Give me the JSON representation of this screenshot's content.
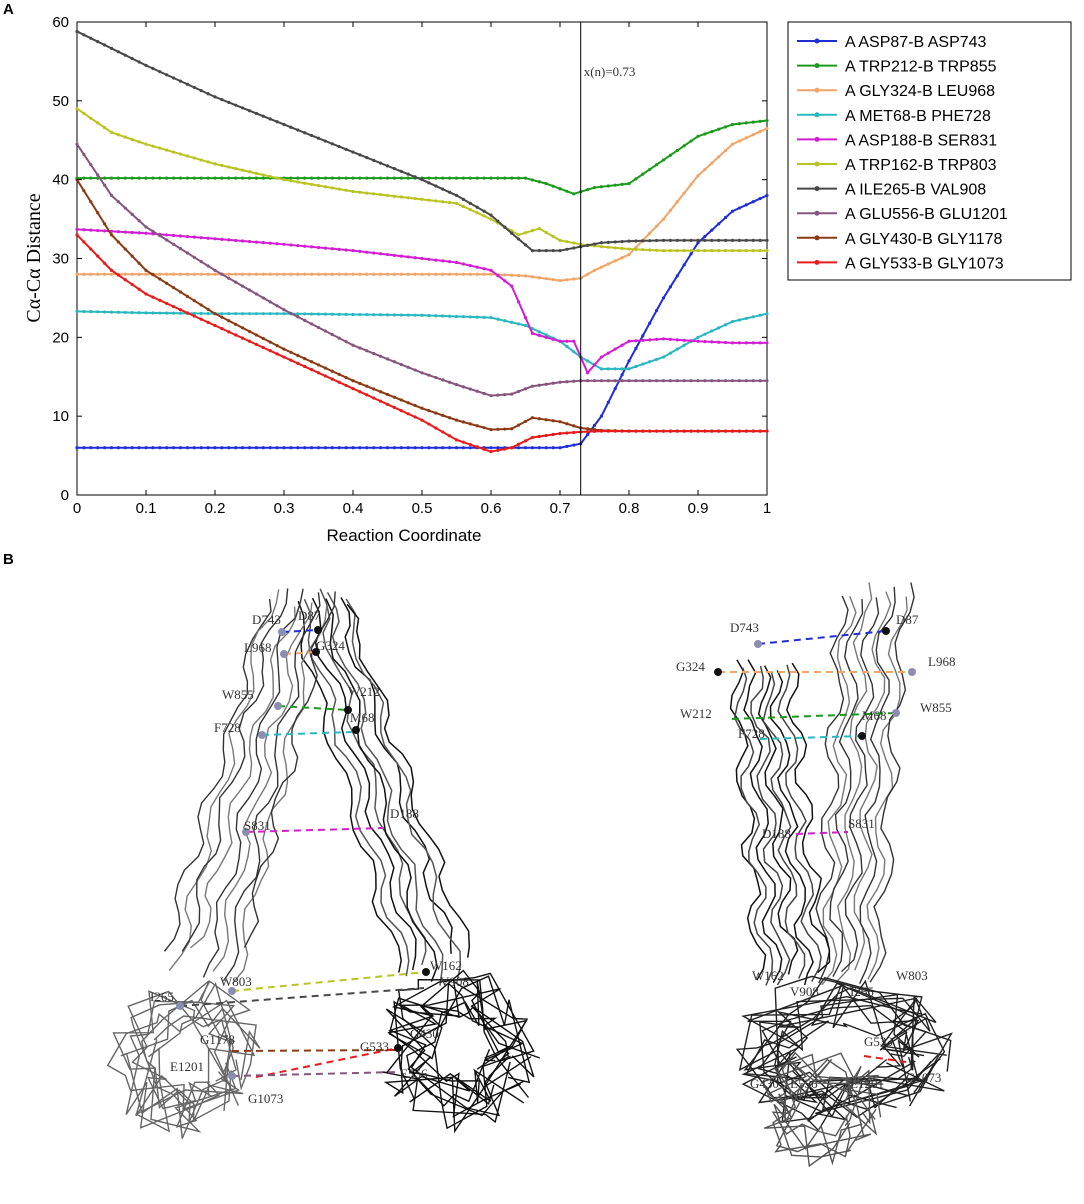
{
  "panels": {
    "a_label": "A",
    "b_label": "B"
  },
  "chart_data": {
    "type": "line",
    "title": "",
    "xlabel": "Reaction Coordinate",
    "ylabel": "Cα-Cα Distance",
    "xlim": [
      0,
      1
    ],
    "ylim": [
      0,
      60
    ],
    "x_ticks": [
      0,
      0.1,
      0.2,
      0.3,
      0.4,
      0.5,
      0.6,
      0.7,
      0.8,
      0.9,
      1
    ],
    "y_ticks": [
      0,
      10,
      20,
      30,
      40,
      50,
      60
    ],
    "grid": false,
    "legend_position": "outside-right",
    "vline": {
      "x": 0.73,
      "label": "x(n)=0.73"
    },
    "series": [
      {
        "name": "A ASP87-B ASP743",
        "color": "#1f2ed8",
        "x": [
          0,
          0.1,
          0.2,
          0.3,
          0.4,
          0.5,
          0.6,
          0.7,
          0.73,
          0.76,
          0.8,
          0.85,
          0.9,
          0.95,
          1.0
        ],
        "y": [
          6,
          6,
          6,
          6,
          6,
          6,
          6,
          6,
          6.5,
          10,
          17,
          25,
          32,
          36,
          38
        ]
      },
      {
        "name": "A TRP212-B TRP855",
        "color": "#1c9a1c",
        "x": [
          0,
          0.1,
          0.2,
          0.3,
          0.4,
          0.5,
          0.6,
          0.65,
          0.68,
          0.72,
          0.75,
          0.8,
          0.85,
          0.9,
          0.95,
          1.0
        ],
        "y": [
          40.2,
          40.2,
          40.2,
          40.2,
          40.2,
          40.2,
          40.2,
          40.2,
          39.5,
          38.2,
          39.0,
          39.5,
          42.5,
          45.5,
          47,
          47.5
        ]
      },
      {
        "name": "A GLY324-B LEU968",
        "color": "#f0a466",
        "x": [
          0,
          0.1,
          0.2,
          0.3,
          0.4,
          0.5,
          0.6,
          0.65,
          0.7,
          0.73,
          0.75,
          0.8,
          0.85,
          0.9,
          0.95,
          1.0
        ],
        "y": [
          28,
          28,
          28,
          28,
          28,
          28,
          28,
          27.8,
          27.2,
          27.5,
          28.5,
          30.5,
          35,
          40.5,
          44.5,
          46.5
        ]
      },
      {
        "name": "A MET68-B PHE728",
        "color": "#2ab8c0",
        "x": [
          0,
          0.1,
          0.2,
          0.3,
          0.4,
          0.5,
          0.6,
          0.65,
          0.7,
          0.73,
          0.76,
          0.8,
          0.85,
          0.9,
          0.95,
          1.0
        ],
        "y": [
          23.3,
          23.1,
          23,
          23,
          22.9,
          22.8,
          22.5,
          21.5,
          19.5,
          17.5,
          16,
          16,
          17.5,
          20,
          22,
          23
        ]
      },
      {
        "name": "A ASP188-B SER831",
        "color": "#d21ed2",
        "x": [
          0,
          0.1,
          0.2,
          0.3,
          0.4,
          0.5,
          0.55,
          0.6,
          0.63,
          0.66,
          0.7,
          0.72,
          0.74,
          0.76,
          0.8,
          0.85,
          0.9,
          0.95,
          1.0
        ],
        "y": [
          33.7,
          33.2,
          32.5,
          31.8,
          31,
          30,
          29.5,
          28.5,
          26.5,
          20.5,
          19.5,
          19.5,
          15.5,
          17.5,
          19.5,
          19.8,
          19.5,
          19.3,
          19.3
        ]
      },
      {
        "name": "A TRP162-B TRP803",
        "color": "#b9c420",
        "x": [
          0,
          0.05,
          0.1,
          0.2,
          0.3,
          0.4,
          0.5,
          0.55,
          0.6,
          0.64,
          0.67,
          0.7,
          0.73,
          0.76,
          0.8,
          0.85,
          0.9,
          0.95,
          1.0
        ],
        "y": [
          49,
          46,
          44.5,
          42,
          40,
          38.5,
          37.5,
          37,
          35,
          33,
          33.8,
          32.3,
          31.8,
          31.5,
          31.2,
          31,
          31,
          31,
          31
        ]
      },
      {
        "name": "A ILE265-B VAL908",
        "color": "#484848",
        "x": [
          0,
          0.1,
          0.2,
          0.3,
          0.4,
          0.5,
          0.55,
          0.6,
          0.63,
          0.66,
          0.7,
          0.73,
          0.76,
          0.8,
          0.85,
          0.9,
          0.95,
          1.0
        ],
        "y": [
          58.8,
          54.5,
          50.5,
          47,
          43.5,
          40,
          38,
          35.5,
          33.2,
          31,
          31,
          31.5,
          32,
          32.2,
          32.3,
          32.3,
          32.3,
          32.3
        ]
      },
      {
        "name": "A GLU556-B GLU1201",
        "color": "#86557e",
        "x": [
          0,
          0.05,
          0.1,
          0.2,
          0.3,
          0.4,
          0.5,
          0.55,
          0.6,
          0.63,
          0.66,
          0.7,
          0.73,
          0.76,
          0.8,
          0.85,
          0.9,
          0.95,
          1.0
        ],
        "y": [
          44.5,
          38,
          34,
          28.5,
          23.5,
          19,
          15.5,
          14,
          12.6,
          12.8,
          13.8,
          14.3,
          14.5,
          14.5,
          14.5,
          14.5,
          14.5,
          14.5,
          14.5
        ]
      },
      {
        "name": "A GLY430-B GLY1178",
        "color": "#8c3a14",
        "x": [
          0,
          0.05,
          0.1,
          0.2,
          0.3,
          0.4,
          0.5,
          0.55,
          0.6,
          0.63,
          0.66,
          0.7,
          0.73,
          0.76,
          0.8,
          0.85,
          0.9,
          0.95,
          1.0
        ],
        "y": [
          40,
          33,
          28.5,
          23,
          18.5,
          14.5,
          11,
          9.5,
          8.3,
          8.4,
          9.8,
          9.3,
          8.5,
          8.2,
          8.1,
          8.1,
          8.1,
          8.1,
          8.1
        ]
      },
      {
        "name": "A GLY533-B GLY1073",
        "color": "#e81a1a",
        "x": [
          0,
          0.05,
          0.1,
          0.2,
          0.3,
          0.4,
          0.5,
          0.55,
          0.6,
          0.63,
          0.66,
          0.7,
          0.73,
          0.76,
          0.8,
          0.85,
          0.9,
          0.95,
          1.0
        ],
        "y": [
          33,
          28.5,
          25.5,
          21.5,
          17.5,
          13.5,
          9.5,
          7,
          5.5,
          6,
          7.3,
          7.8,
          8,
          8.1,
          8.1,
          8.1,
          8.1,
          8.1,
          8.1
        ]
      }
    ]
  },
  "structure_left": {
    "labels": [
      "D743",
      "D87",
      "L968",
      "G324",
      "W855",
      "W212",
      "F728",
      "M68",
      "S831",
      "D188",
      "W803",
      "W162",
      "I265",
      "V908",
      "G1178",
      "G430",
      "E1201",
      "E556",
      "G533",
      "G1073"
    ],
    "pairs": [
      {
        "color": "#1f2ed8"
      },
      {
        "color": "#f0a466"
      },
      {
        "color": "#1c9a1c"
      },
      {
        "color": "#2ab8c0"
      },
      {
        "color": "#d21ed2"
      },
      {
        "color": "#b9c420"
      },
      {
        "color": "#484848"
      },
      {
        "color": "#8c3a14"
      },
      {
        "color": "#e81a1a"
      },
      {
        "color": "#86557e"
      }
    ]
  },
  "structure_right": {
    "labels": [
      "D743",
      "D87",
      "G324",
      "L968",
      "W212",
      "W855",
      "F728",
      "M68",
      "D188",
      "S831",
      "W162",
      "W803",
      "V908",
      "I265",
      "G430",
      "E556",
      "E1201",
      "G533",
      "G1073"
    ],
    "pairs": [
      {
        "color": "#1f2ed8"
      },
      {
        "color": "#f0a466"
      },
      {
        "color": "#1c9a1c"
      },
      {
        "color": "#2ab8c0"
      },
      {
        "color": "#d21ed2"
      },
      {
        "color": "#e81a1a"
      }
    ]
  }
}
